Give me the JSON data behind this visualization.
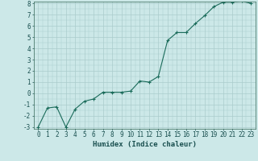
{
  "title": "",
  "xlabel": "Humidex (Indice chaleur)",
  "ylabel": "",
  "x_values": [
    0,
    1,
    2,
    3,
    4,
    5,
    6,
    7,
    8,
    9,
    10,
    11,
    12,
    13,
    14,
    15,
    16,
    17,
    18,
    19,
    20,
    21,
    22,
    23
  ],
  "y_values": [
    -3,
    -1.3,
    -1.2,
    -3,
    -1.4,
    -0.7,
    -0.5,
    0.1,
    0.1,
    0.1,
    0.2,
    1.1,
    1.0,
    1.5,
    4.7,
    5.4,
    5.4,
    6.2,
    6.9,
    7.7,
    8.1,
    8.1,
    8.2,
    8.0
  ],
  "line_color": "#1a6b5a",
  "marker": "+",
  "marker_size": 3.5,
  "line_width": 0.8,
  "bg_color": "#cce8e8",
  "grid_color": "#aacccc",
  "ylim_min": -3,
  "ylim_max": 8,
  "xlim_min": -0.5,
  "xlim_max": 23.5,
  "yticks": [
    -3,
    -2,
    -1,
    0,
    1,
    2,
    3,
    4,
    5,
    6,
    7,
    8
  ],
  "xticks": [
    0,
    1,
    2,
    3,
    4,
    5,
    6,
    7,
    8,
    9,
    10,
    11,
    12,
    13,
    14,
    15,
    16,
    17,
    18,
    19,
    20,
    21,
    22,
    23
  ],
  "tick_label_fontsize": 5.5,
  "xlabel_fontsize": 6.5,
  "tick_color": "#1a5050"
}
